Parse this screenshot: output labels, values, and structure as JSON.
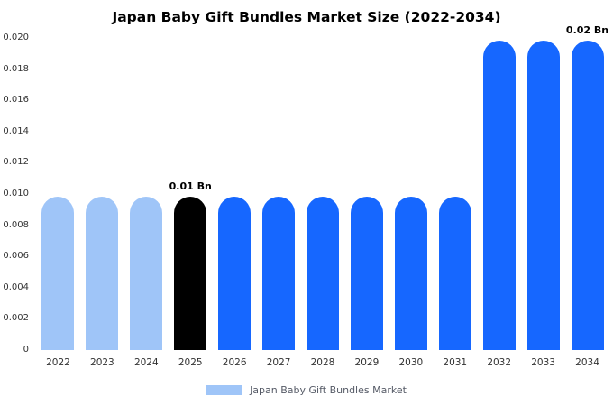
{
  "chart_data": {
    "type": "bar",
    "title": "Japan Baby Gift Bundles Market Size (2022-2034)",
    "categories": [
      "2022",
      "2023",
      "2024",
      "2025",
      "2026",
      "2027",
      "2028",
      "2029",
      "2030",
      "2031",
      "2032",
      "2033",
      "2034"
    ],
    "values": [
      0.0098,
      0.0098,
      0.0098,
      0.0098,
      0.0098,
      0.0098,
      0.0098,
      0.0098,
      0.0098,
      0.0098,
      0.0198,
      0.0198,
      0.0198
    ],
    "bar_colors": [
      "#9fc5f8",
      "#9fc5f8",
      "#9fc5f8",
      "#000000",
      "#1667ff",
      "#1667ff",
      "#1667ff",
      "#1667ff",
      "#1667ff",
      "#1667ff",
      "#1667ff",
      "#1667ff",
      "#1667ff"
    ],
    "ylim": [
      0,
      0.02
    ],
    "yticks": [
      {
        "value": 0.0,
        "label": "0"
      },
      {
        "value": 0.002,
        "label": "0.002"
      },
      {
        "value": 0.004,
        "label": "0.004"
      },
      {
        "value": 0.006,
        "label": "0.006"
      },
      {
        "value": 0.008,
        "label": "0.008"
      },
      {
        "value": 0.01,
        "label": "0.010"
      },
      {
        "value": 0.012,
        "label": "0.012"
      },
      {
        "value": 0.014,
        "label": "0.014"
      },
      {
        "value": 0.016,
        "label": "0.016"
      },
      {
        "value": 0.018,
        "label": "0.018"
      },
      {
        "value": 0.02,
        "label": "0.020"
      }
    ],
    "annotations": [
      {
        "index": 3,
        "text": "0.01 Bn"
      },
      {
        "index": 12,
        "text": "0.02 Bn"
      }
    ],
    "legend": {
      "label": "Japan Baby Gift Bundles Market",
      "swatch_color": "#9fc5f8"
    },
    "grid": false,
    "legend_position": "bottom",
    "xlabel": "",
    "ylabel": ""
  },
  "colors": {
    "accent_blue": "#1667ff",
    "light_blue": "#9fc5f8",
    "highlight_black": "#000000"
  }
}
